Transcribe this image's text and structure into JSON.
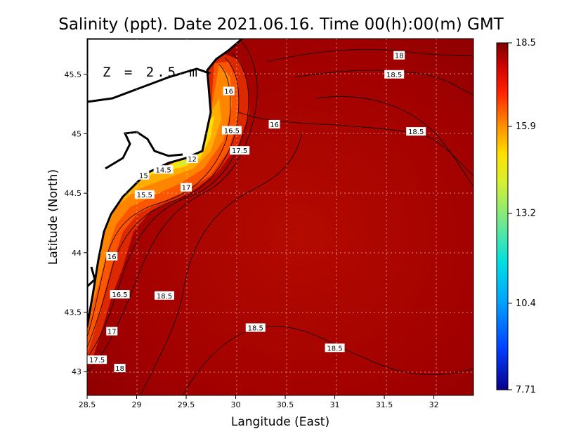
{
  "chart_data": {
    "type": "heatmap",
    "title": "Salinity (ppt). Date 2021.06.16. Time 00(h):00(m) GMT",
    "xlabel": "Langitude (East)",
    "ylabel": "Latitude (North)",
    "depth_label": "Z = 2.5 m",
    "xlim": [
      28.5,
      32.4
    ],
    "ylim": [
      42.8,
      45.8
    ],
    "x_ticks": [
      "28.5",
      "29",
      "29.5",
      "30",
      "30.5",
      "31",
      "31.5",
      "32"
    ],
    "y_ticks": [
      "43",
      "43.5",
      "44",
      "44.5",
      "45",
      "45.5"
    ],
    "grid": true,
    "colorbar": {
      "ticks": [
        "18.5",
        "15.9",
        "13.2",
        "10.4",
        "7.71"
      ],
      "min": 7.71,
      "max": 18.5,
      "colors": [
        "#08008c",
        "#0040ff",
        "#00c8ff",
        "#40e0c0",
        "#c8f050",
        "#ffff00",
        "#ffa000",
        "#ff3000",
        "#c00000",
        "#800000"
      ]
    },
    "contour_labels": [
      {
        "text": "18",
        "lon": 31.65,
        "lat": 45.66
      },
      {
        "text": "18.5",
        "lon": 31.6,
        "lat": 45.5
      },
      {
        "text": "16",
        "lon": 29.93,
        "lat": 45.36
      },
      {
        "text": "16",
        "lon": 30.39,
        "lat": 45.08
      },
      {
        "text": "16.5",
        "lon": 29.96,
        "lat": 45.03
      },
      {
        "text": "18.5",
        "lon": 31.82,
        "lat": 45.02
      },
      {
        "text": "17.5",
        "lon": 30.04,
        "lat": 44.86
      },
      {
        "text": "12",
        "lon": 29.56,
        "lat": 44.79
      },
      {
        "text": "14.5",
        "lon": 29.27,
        "lat": 44.7
      },
      {
        "text": "15",
        "lon": 29.07,
        "lat": 44.65
      },
      {
        "text": "17",
        "lon": 29.5,
        "lat": 44.55
      },
      {
        "text": "15.5",
        "lon": 29.08,
        "lat": 44.49
      },
      {
        "text": "16",
        "lon": 28.75,
        "lat": 43.97
      },
      {
        "text": "16.5",
        "lon": 28.83,
        "lat": 43.65
      },
      {
        "text": "18.5",
        "lon": 29.28,
        "lat": 43.64
      },
      {
        "text": "17",
        "lon": 28.75,
        "lat": 43.34
      },
      {
        "text": "18.5",
        "lon": 30.2,
        "lat": 43.37
      },
      {
        "text": "18.5",
        "lon": 31.0,
        "lat": 43.2
      },
      {
        "text": "17.5",
        "lon": 28.6,
        "lat": 43.1
      },
      {
        "text": "18",
        "lon": 28.83,
        "lat": 43.03
      }
    ]
  }
}
